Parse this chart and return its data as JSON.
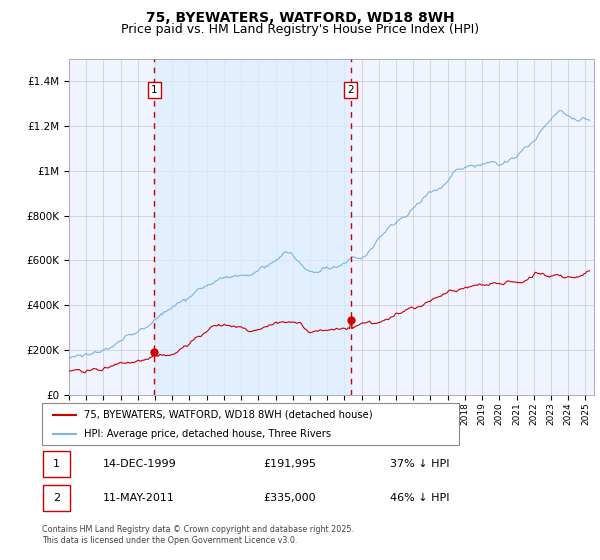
{
  "title": "75, BYEWATERS, WATFORD, WD18 8WH",
  "subtitle": "Price paid vs. HM Land Registry's House Price Index (HPI)",
  "ylim": [
    0,
    1500000
  ],
  "yticks": [
    0,
    200000,
    400000,
    600000,
    800000,
    1000000,
    1200000,
    1400000
  ],
  "ytick_labels": [
    "£0",
    "£200K",
    "£400K",
    "£600K",
    "£800K",
    "£1M",
    "£1.2M",
    "£1.4M"
  ],
  "year_start": 1995,
  "year_end": 2025,
  "hpi_color": "#7ab4e0",
  "price_color": "#cc0000",
  "sale1_date": "14-DEC-1999",
  "sale1_price": 191995,
  "sale2_date": "11-MAY-2011",
  "sale2_price": 335000,
  "sale1_pct": "37% ↓ HPI",
  "sale2_pct": "46% ↓ HPI",
  "legend_red": "75, BYEWATERS, WATFORD, WD18 8WH (detached house)",
  "legend_blue": "HPI: Average price, detached house, Three Rivers",
  "footnote": "Contains HM Land Registry data © Crown copyright and database right 2025.\nThis data is licensed under the Open Government Licence v3.0.",
  "title_fontsize": 10,
  "subtitle_fontsize": 9,
  "grid_color": "#c8c8d8",
  "vline_color": "#cc0000",
  "shade_color": "#ddeeff"
}
